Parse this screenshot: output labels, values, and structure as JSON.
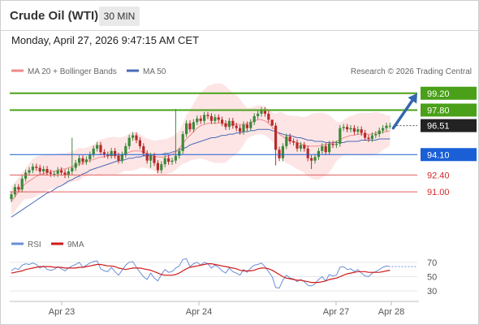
{
  "header": {
    "title": "Crude Oil (WTI)",
    "timeframe": "30 MIN",
    "timestamp": "Monday, April 27, 2026 9:47:15 AM CET"
  },
  "colors": {
    "bull_candle": "#3a8a3a",
    "bear_candle": "#b72a2a",
    "ma20_bollinger": "#f08a8a",
    "bollinger_fill": "#fde0e0",
    "ma50": "#4a6ab5",
    "resistance": "#4aa019",
    "support_blue": "#1a5fd6",
    "support_red": "#e05c5c",
    "arrow": "#3366b0",
    "rsi": "#6a8fd6",
    "rsi_ma": "#d11a1a"
  },
  "chart_data": [
    {
      "type": "candlestick",
      "title": "",
      "legend": [
        {
          "name": "MA 20 + Bollinger Bands",
          "color": "#f08a8a"
        },
        {
          "name": "MA 50",
          "color": "#4a6ab5"
        }
      ],
      "watermark": "Research © 2026 Trading Central",
      "ylim": [
        87.7,
        100.4
      ],
      "x_ticks": [
        "Apr 23",
        "Apr 24",
        "Apr 27",
        "Apr 28"
      ],
      "current_price": 96.51,
      "levels": [
        {
          "value": 99.2,
          "label": "99.20",
          "kind": "resistance"
        },
        {
          "value": 97.8,
          "label": "97.80",
          "kind": "resistance"
        },
        {
          "value": 96.51,
          "label": "96.51",
          "kind": "current"
        },
        {
          "value": 94.1,
          "label": "94.10",
          "kind": "support_blue"
        },
        {
          "value": 92.4,
          "label": "92.40",
          "kind": "support_red"
        },
        {
          "value": 91.0,
          "label": "91.00",
          "kind": "support_red"
        }
      ],
      "forecast_arrow": {
        "from": 96.3,
        "to": 99.2
      },
      "close_series": [
        90.8,
        91.4,
        91.2,
        92.1,
        92.6,
        92.8,
        93.1,
        93.0,
        92.7,
        92.9,
        92.6,
        92.5,
        92.5,
        92.8,
        92.6,
        92.4,
        92.7,
        93.0,
        93.4,
        93.8,
        93.5,
        93.7,
        94.1,
        94.6,
        94.9,
        94.3,
        94.1,
        94.0,
        94.4,
        94.0,
        93.6,
        94.1,
        94.8,
        95.5,
        95.7,
        95.3,
        94.8,
        94.2,
        93.6,
        94.0,
        93.4,
        92.8,
        93.3,
        93.8,
        93.5,
        93.6,
        94.0,
        94.4,
        95.8,
        96.7,
        96.2,
        96.8,
        97.1,
        96.9,
        97.4,
        97.3,
        96.9,
        97.2,
        97.0,
        96.7,
        96.4,
        96.9,
        96.5,
        96.3,
        96.0,
        96.6,
        96.3,
        96.8,
        97.3,
        97.5,
        97.8,
        97.5,
        97.0,
        96.5,
        94.5,
        93.8,
        94.8,
        95.6,
        95.2,
        95.1,
        94.6,
        94.9,
        94.6,
        93.8,
        93.6,
        93.9,
        94.4,
        94.8,
        94.3,
        95.0,
        94.9,
        95.0,
        96.3,
        96.4,
        96.2,
        96.3,
        96.0,
        96.2,
        95.9,
        95.5,
        95.4,
        95.7,
        95.8,
        96.1,
        96.3,
        96.5,
        96.5
      ],
      "ma20_series": [
        90.2,
        90.6,
        91.0,
        91.4,
        91.7,
        91.9,
        92.1,
        92.3,
        92.4,
        92.5,
        92.6,
        92.7,
        92.7,
        92.8,
        92.9,
        92.9,
        93.0,
        93.1,
        93.2,
        93.3,
        93.4,
        93.5,
        93.6,
        93.7,
        93.8,
        93.9,
        93.9,
        94.0,
        94.0,
        94.0,
        94.0,
        94.1,
        94.2,
        94.3,
        94.4,
        94.4,
        94.4,
        94.3,
        94.2,
        94.1,
        94.0,
        93.9,
        93.9,
        93.9,
        94.0,
        94.1,
        94.3,
        94.6,
        95.0,
        95.4,
        95.7,
        96.0,
        96.3,
        96.5,
        96.6,
        96.7,
        96.7,
        96.7,
        96.7,
        96.7,
        96.6,
        96.6,
        96.6,
        96.6,
        96.6,
        96.6,
        96.7,
        96.8,
        96.9,
        97.0,
        97.0,
        96.9,
        96.7,
        96.4,
        96.1,
        95.8,
        95.6,
        95.4,
        95.3,
        95.2,
        95.1,
        95.0,
        94.9,
        94.8,
        94.8,
        94.8,
        94.8,
        94.9,
        94.9,
        95.0,
        95.1,
        95.2,
        95.3,
        95.5,
        95.6,
        95.7,
        95.7,
        95.8,
        95.8,
        95.8,
        95.8,
        95.8,
        95.9,
        95.9,
        96.0,
        96.0,
        96.1
      ],
      "ma50_series": [
        88.9,
        89.1,
        89.3,
        89.5,
        89.7,
        89.9,
        90.1,
        90.3,
        90.5,
        90.7,
        90.9,
        91.0,
        91.2,
        91.4,
        91.5,
        91.7,
        91.9,
        92.0,
        92.2,
        92.3,
        92.5,
        92.6,
        92.8,
        92.9,
        93.0,
        93.1,
        93.2,
        93.3,
        93.4,
        93.5,
        93.6,
        93.6,
        93.7,
        93.8,
        93.8,
        93.9,
        93.9,
        94.0,
        94.0,
        94.0,
        94.1,
        94.1,
        94.1,
        94.2,
        94.2,
        94.3,
        94.4,
        94.5,
        94.6,
        94.7,
        94.9,
        95.0,
        95.1,
        95.2,
        95.3,
        95.4,
        95.5,
        95.5,
        95.6,
        95.7,
        95.7,
        95.8,
        95.8,
        95.9,
        95.9,
        96.0,
        96.0,
        96.1,
        96.1,
        96.2,
        96.2,
        96.2,
        96.2,
        96.1,
        96.0,
        95.9,
        95.8,
        95.7,
        95.7,
        95.6,
        95.5,
        95.5,
        95.4,
        95.3,
        95.3,
        95.2,
        95.2,
        95.2,
        95.1,
        95.1,
        95.1,
        95.1,
        95.1,
        95.1,
        95.2,
        95.2,
        95.2,
        95.2,
        95.3,
        95.3,
        95.3,
        95.3,
        95.3,
        95.4,
        95.4,
        95.4,
        95.4
      ]
    },
    {
      "type": "line",
      "title": "",
      "legend": [
        {
          "name": "RSI",
          "color": "#6a8fd6"
        },
        {
          "name": "9MA",
          "color": "#d11a1a"
        }
      ],
      "ylim": [
        20,
        80
      ],
      "y_ticks": [
        70,
        50,
        30
      ],
      "reference_line": 64,
      "series": [
        {
          "name": "RSI",
          "values": [
            58,
            62,
            60,
            66,
            68,
            67,
            69,
            67,
            62,
            65,
            60,
            59,
            60,
            64,
            61,
            58,
            62,
            65,
            67,
            70,
            63,
            66,
            69,
            71,
            72,
            61,
            58,
            57,
            63,
            57,
            52,
            59,
            66,
            70,
            71,
            63,
            56,
            50,
            46,
            55,
            48,
            44,
            53,
            60,
            56,
            57,
            62,
            65,
            74,
            75,
            64,
            68,
            70,
            66,
            70,
            68,
            62,
            66,
            63,
            58,
            55,
            62,
            57,
            55,
            52,
            60,
            56,
            62,
            66,
            67,
            69,
            64,
            57,
            50,
            35,
            34,
            45,
            52,
            48,
            47,
            43,
            46,
            43,
            38,
            37,
            40,
            46,
            50,
            44,
            53,
            51,
            52,
            63,
            64,
            60,
            61,
            57,
            60,
            55,
            51,
            50,
            55,
            57,
            60,
            63,
            65,
            64
          ]
        },
        {
          "name": "9MA",
          "values": [
            55,
            56,
            57,
            58,
            60,
            61,
            62,
            63,
            64,
            64,
            64,
            64,
            63,
            63,
            63,
            62,
            62,
            62,
            62,
            63,
            63,
            64,
            65,
            66,
            67,
            67,
            66,
            65,
            65,
            64,
            62,
            61,
            60,
            61,
            62,
            62,
            62,
            61,
            60,
            59,
            57,
            55,
            53,
            52,
            52,
            52,
            53,
            55,
            58,
            61,
            63,
            64,
            65,
            66,
            67,
            68,
            68,
            67,
            66,
            65,
            64,
            63,
            62,
            61,
            59,
            58,
            58,
            58,
            59,
            61,
            62,
            62,
            61,
            59,
            56,
            53,
            50,
            48,
            47,
            46,
            45,
            45,
            44,
            43,
            42,
            42,
            42,
            43,
            44,
            46,
            47,
            48,
            50,
            52,
            54,
            55,
            56,
            57,
            57,
            57,
            56,
            56,
            56,
            56,
            57,
            58,
            59
          ]
        }
      ]
    }
  ]
}
